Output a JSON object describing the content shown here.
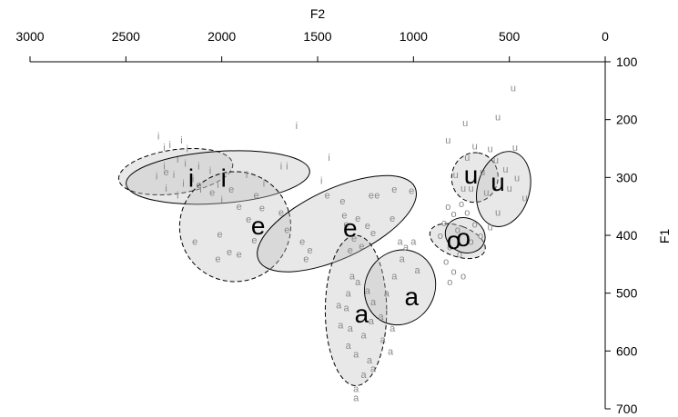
{
  "chart_data": {
    "type": "scatter",
    "title": "",
    "xlabel": "F2",
    "ylabel": "F1",
    "x_axis_position": "top",
    "y_axis_position": "right",
    "x_reversed": true,
    "y_reversed": true,
    "xlim": [
      3000,
      0
    ],
    "ylim": [
      100,
      700
    ],
    "x_ticks": [
      3000,
      2500,
      2000,
      1500,
      1000,
      500,
      0
    ],
    "y_ticks": [
      100,
      200,
      300,
      400,
      500,
      600,
      700
    ],
    "grid": false,
    "colors": {
      "token": "#8a8a8a",
      "ellipse_fill": "#bdbdbd",
      "outline": "#000000"
    },
    "ellipses": [
      {
        "label": "i",
        "line": "dashed",
        "cx": 2240,
        "cy": 290,
        "rx": 300,
        "ry": 38,
        "angle": -8
      },
      {
        "label": "i",
        "line": "solid",
        "cx": 2020,
        "cy": 300,
        "rx": 480,
        "ry": 45,
        "angle": -4
      },
      {
        "label": "e",
        "line": "dashed",
        "cx": 1930,
        "cy": 385,
        "rx": 290,
        "ry": 95,
        "angle": -15
      },
      {
        "label": "e",
        "line": "solid",
        "cx": 1400,
        "cy": 380,
        "rx": 450,
        "ry": 60,
        "angle": -25
      },
      {
        "label": "a",
        "line": "dashed",
        "cx": 1300,
        "cy": 530,
        "rx": 160,
        "ry": 130,
        "angle": 0
      },
      {
        "label": "a",
        "line": "solid",
        "cx": 1070,
        "cy": 490,
        "rx": 200,
        "ry": 60,
        "angle": -62
      },
      {
        "label": "o",
        "line": "dashed",
        "cx": 770,
        "cy": 410,
        "rx": 80,
        "ry": 50,
        "angle": -70
      },
      {
        "label": "o",
        "line": "solid",
        "cx": 730,
        "cy": 400,
        "rx": 90,
        "ry": 35,
        "angle": -68
      },
      {
        "label": "u",
        "line": "dashed",
        "cx": 680,
        "cy": 300,
        "rx": 130,
        "ry": 40,
        "angle": -82
      },
      {
        "label": "u",
        "line": "solid",
        "cx": 530,
        "cy": 320,
        "rx": 200,
        "ry": 45,
        "angle": -75
      }
    ],
    "centroids": [
      {
        "label": "i",
        "x": 2160,
        "y": 300
      },
      {
        "label": "i",
        "x": 1990,
        "y": 300
      },
      {
        "label": "e",
        "x": 1810,
        "y": 383
      },
      {
        "label": "e",
        "x": 1330,
        "y": 387
      },
      {
        "label": "a",
        "x": 1270,
        "y": 535
      },
      {
        "label": "a",
        "x": 1010,
        "y": 505
      },
      {
        "label": "o",
        "x": 790,
        "y": 408
      },
      {
        "label": "o",
        "x": 740,
        "y": 403
      },
      {
        "label": "u",
        "x": 700,
        "y": 295
      },
      {
        "label": "u",
        "x": 560,
        "y": 307
      }
    ],
    "tokens": [
      {
        "label": "i",
        "x": 2270,
        "y": 243
      },
      {
        "label": "i",
        "x": 2300,
        "y": 248
      },
      {
        "label": "i",
        "x": 2180,
        "y": 250
      },
      {
        "label": "i",
        "x": 2230,
        "y": 268
      },
      {
        "label": "i",
        "x": 2190,
        "y": 275
      },
      {
        "label": "i",
        "x": 2300,
        "y": 280
      },
      {
        "label": "i",
        "x": 2120,
        "y": 280
      },
      {
        "label": "i",
        "x": 2060,
        "y": 288
      },
      {
        "label": "i",
        "x": 2250,
        "y": 295
      },
      {
        "label": "i",
        "x": 2340,
        "y": 297
      },
      {
        "label": "i",
        "x": 2150,
        "y": 302
      },
      {
        "label": "i",
        "x": 2200,
        "y": 310
      },
      {
        "label": "i",
        "x": 2290,
        "y": 318
      },
      {
        "label": "i",
        "x": 2110,
        "y": 320
      },
      {
        "label": "i",
        "x": 2230,
        "y": 330
      },
      {
        "label": "i",
        "x": 2020,
        "y": 312
      },
      {
        "label": "i",
        "x": 2000,
        "y": 338
      },
      {
        "label": "i",
        "x": 1870,
        "y": 295
      },
      {
        "label": "i",
        "x": 1780,
        "y": 310
      },
      {
        "label": "i",
        "x": 1660,
        "y": 280
      },
      {
        "label": "i",
        "x": 1690,
        "y": 280
      },
      {
        "label": "i",
        "x": 1610,
        "y": 210
      },
      {
        "label": "i",
        "x": 1480,
        "y": 305
      },
      {
        "label": "i",
        "x": 1440,
        "y": 265
      },
      {
        "label": "i",
        "x": 2210,
        "y": 235
      },
      {
        "label": "i",
        "x": 2330,
        "y": 228
      },
      {
        "label": "e",
        "x": 2290,
        "y": 290
      },
      {
        "label": "e",
        "x": 2120,
        "y": 312
      },
      {
        "label": "e",
        "x": 2050,
        "y": 325
      },
      {
        "label": "e",
        "x": 1950,
        "y": 320
      },
      {
        "label": "e",
        "x": 1820,
        "y": 330
      },
      {
        "label": "e",
        "x": 1910,
        "y": 350
      },
      {
        "label": "e",
        "x": 1790,
        "y": 352
      },
      {
        "label": "e",
        "x": 1860,
        "y": 372
      },
      {
        "label": "e",
        "x": 2010,
        "y": 398
      },
      {
        "label": "e",
        "x": 1830,
        "y": 408
      },
      {
        "label": "e",
        "x": 1960,
        "y": 428
      },
      {
        "label": "e",
        "x": 1910,
        "y": 432
      },
      {
        "label": "e",
        "x": 2140,
        "y": 410
      },
      {
        "label": "e",
        "x": 2020,
        "y": 440
      },
      {
        "label": "e",
        "x": 1690,
        "y": 360
      },
      {
        "label": "e",
        "x": 1660,
        "y": 390
      },
      {
        "label": "e",
        "x": 1580,
        "y": 410
      },
      {
        "label": "e",
        "x": 1560,
        "y": 440
      },
      {
        "label": "e",
        "x": 1540,
        "y": 425
      },
      {
        "label": "e",
        "x": 1450,
        "y": 330
      },
      {
        "label": "e",
        "x": 1370,
        "y": 340
      },
      {
        "label": "e",
        "x": 1360,
        "y": 365
      },
      {
        "label": "e",
        "x": 1350,
        "y": 380
      },
      {
        "label": "e",
        "x": 1290,
        "y": 370
      },
      {
        "label": "e",
        "x": 1240,
        "y": 383
      },
      {
        "label": "e",
        "x": 1310,
        "y": 405
      },
      {
        "label": "e",
        "x": 1270,
        "y": 418
      },
      {
        "label": "e",
        "x": 1330,
        "y": 425
      },
      {
        "label": "e",
        "x": 1220,
        "y": 330
      },
      {
        "label": "e",
        "x": 1190,
        "y": 330
      },
      {
        "label": "e",
        "x": 1100,
        "y": 320
      },
      {
        "label": "e",
        "x": 1010,
        "y": 322
      },
      {
        "label": "e",
        "x": 1110,
        "y": 370
      },
      {
        "label": "e",
        "x": 1210,
        "y": 395
      },
      {
        "label": "a",
        "x": 1320,
        "y": 470
      },
      {
        "label": "a",
        "x": 1290,
        "y": 480
      },
      {
        "label": "a",
        "x": 1340,
        "y": 500
      },
      {
        "label": "a",
        "x": 1240,
        "y": 495
      },
      {
        "label": "a",
        "x": 1350,
        "y": 525
      },
      {
        "label": "a",
        "x": 1210,
        "y": 515
      },
      {
        "label": "a",
        "x": 1330,
        "y": 560
      },
      {
        "label": "a",
        "x": 1220,
        "y": 548
      },
      {
        "label": "a",
        "x": 1260,
        "y": 572
      },
      {
        "label": "a",
        "x": 1340,
        "y": 590
      },
      {
        "label": "a",
        "x": 1300,
        "y": 605
      },
      {
        "label": "a",
        "x": 1230,
        "y": 615
      },
      {
        "label": "a",
        "x": 1260,
        "y": 640
      },
      {
        "label": "a",
        "x": 1210,
        "y": 630
      },
      {
        "label": "a",
        "x": 1300,
        "y": 665
      },
      {
        "label": "a",
        "x": 1300,
        "y": 680
      },
      {
        "label": "a",
        "x": 1160,
        "y": 580
      },
      {
        "label": "a",
        "x": 1170,
        "y": 540
      },
      {
        "label": "a",
        "x": 1140,
        "y": 500
      },
      {
        "label": "a",
        "x": 1100,
        "y": 470
      },
      {
        "label": "a",
        "x": 1060,
        "y": 440
      },
      {
        "label": "a",
        "x": 1040,
        "y": 420
      },
      {
        "label": "a",
        "x": 1000,
        "y": 410
      },
      {
        "label": "a",
        "x": 1070,
        "y": 410
      },
      {
        "label": "a",
        "x": 980,
        "y": 460
      },
      {
        "label": "a",
        "x": 1120,
        "y": 600
      },
      {
        "label": "a",
        "x": 1110,
        "y": 560
      },
      {
        "label": "a",
        "x": 1390,
        "y": 520
      },
      {
        "label": "a",
        "x": 1380,
        "y": 555
      },
      {
        "label": "o",
        "x": 820,
        "y": 350
      },
      {
        "label": "o",
        "x": 790,
        "y": 362
      },
      {
        "label": "o",
        "x": 840,
        "y": 378
      },
      {
        "label": "o",
        "x": 770,
        "y": 390
      },
      {
        "label": "o",
        "x": 860,
        "y": 400
      },
      {
        "label": "o",
        "x": 810,
        "y": 420
      },
      {
        "label": "o",
        "x": 760,
        "y": 432
      },
      {
        "label": "o",
        "x": 830,
        "y": 445
      },
      {
        "label": "o",
        "x": 790,
        "y": 462
      },
      {
        "label": "o",
        "x": 740,
        "y": 470
      },
      {
        "label": "o",
        "x": 810,
        "y": 480
      },
      {
        "label": "o",
        "x": 700,
        "y": 410
      },
      {
        "label": "o",
        "x": 680,
        "y": 380
      },
      {
        "label": "o",
        "x": 720,
        "y": 360
      },
      {
        "label": "o",
        "x": 750,
        "y": 345
      },
      {
        "label": "o",
        "x": 650,
        "y": 400
      },
      {
        "label": "u",
        "x": 480,
        "y": 145
      },
      {
        "label": "u",
        "x": 560,
        "y": 195
      },
      {
        "label": "u",
        "x": 730,
        "y": 205
      },
      {
        "label": "u",
        "x": 820,
        "y": 235
      },
      {
        "label": "u",
        "x": 680,
        "y": 245
      },
      {
        "label": "u",
        "x": 720,
        "y": 265
      },
      {
        "label": "u",
        "x": 600,
        "y": 250
      },
      {
        "label": "u",
        "x": 570,
        "y": 270
      },
      {
        "label": "u",
        "x": 520,
        "y": 285
      },
      {
        "label": "u",
        "x": 470,
        "y": 248
      },
      {
        "label": "u",
        "x": 640,
        "y": 290
      },
      {
        "label": "u",
        "x": 740,
        "y": 318
      },
      {
        "label": "u",
        "x": 700,
        "y": 318
      },
      {
        "label": "u",
        "x": 620,
        "y": 325
      },
      {
        "label": "u",
        "x": 500,
        "y": 318
      },
      {
        "label": "u",
        "x": 420,
        "y": 335
      },
      {
        "label": "u",
        "x": 560,
        "y": 360
      },
      {
        "label": "u",
        "x": 600,
        "y": 385
      },
      {
        "label": "u",
        "x": 780,
        "y": 295
      },
      {
        "label": "u",
        "x": 460,
        "y": 300
      }
    ]
  }
}
